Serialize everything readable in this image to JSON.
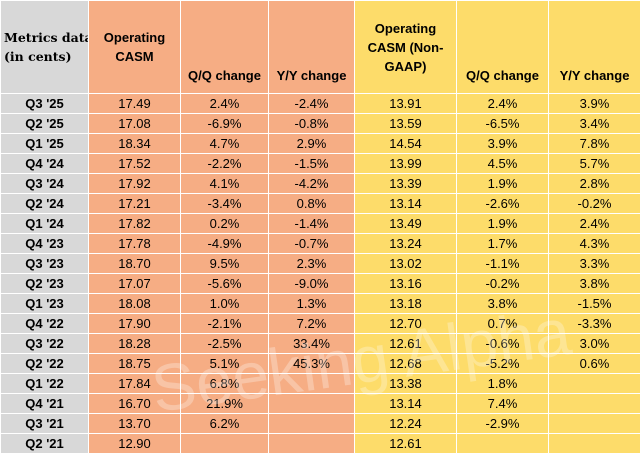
{
  "header": {
    "metric_line1": "Metrics data",
    "metric_line2": "(in cents)",
    "op_casm": "Operating CASM",
    "qq1": "Q/Q change",
    "yy1": "Y/Y change",
    "op_casm_nongaap": "Operating CASM (Non-GAAP)",
    "qq2": "Q/Q change",
    "yy2": "Y/Y change"
  },
  "rows": [
    {
      "period": "Q3 '25",
      "casm": "17.49",
      "casm_qq": "2.4%",
      "casm_yy": "-2.4%",
      "ng": "13.91",
      "ng_qq": "2.4%",
      "ng_yy": "3.9%"
    },
    {
      "period": "Q2 '25",
      "casm": "17.08",
      "casm_qq": "-6.9%",
      "casm_yy": "-0.8%",
      "ng": "13.59",
      "ng_qq": "-6.5%",
      "ng_yy": "3.4%"
    },
    {
      "period": "Q1 '25",
      "casm": "18.34",
      "casm_qq": "4.7%",
      "casm_yy": "2.9%",
      "ng": "14.54",
      "ng_qq": "3.9%",
      "ng_yy": "7.8%"
    },
    {
      "period": "Q4 '24",
      "casm": "17.52",
      "casm_qq": "-2.2%",
      "casm_yy": "-1.5%",
      "ng": "13.99",
      "ng_qq": "4.5%",
      "ng_yy": "5.7%"
    },
    {
      "period": "Q3 '24",
      "casm": "17.92",
      "casm_qq": "4.1%",
      "casm_yy": "-4.2%",
      "ng": "13.39",
      "ng_qq": "1.9%",
      "ng_yy": "2.8%"
    },
    {
      "period": "Q2 '24",
      "casm": "17.21",
      "casm_qq": "-3.4%",
      "casm_yy": "0.8%",
      "ng": "13.14",
      "ng_qq": "-2.6%",
      "ng_yy": "-0.2%"
    },
    {
      "period": "Q1 '24",
      "casm": "17.82",
      "casm_qq": "0.2%",
      "casm_yy": "-1.4%",
      "ng": "13.49",
      "ng_qq": "1.9%",
      "ng_yy": "2.4%"
    },
    {
      "period": "Q4 '23",
      "casm": "17.78",
      "casm_qq": "-4.9%",
      "casm_yy": "-0.7%",
      "ng": "13.24",
      "ng_qq": "1.7%",
      "ng_yy": "4.3%"
    },
    {
      "period": "Q3 '23",
      "casm": "18.70",
      "casm_qq": "9.5%",
      "casm_yy": "2.3%",
      "ng": "13.02",
      "ng_qq": "-1.1%",
      "ng_yy": "3.3%"
    },
    {
      "period": "Q2 '23",
      "casm": "17.07",
      "casm_qq": "-5.6%",
      "casm_yy": "-9.0%",
      "ng": "13.16",
      "ng_qq": "-0.2%",
      "ng_yy": "3.8%"
    },
    {
      "period": "Q1 '23",
      "casm": "18.08",
      "casm_qq": "1.0%",
      "casm_yy": "1.3%",
      "ng": "13.18",
      "ng_qq": "3.8%",
      "ng_yy": "-1.5%"
    },
    {
      "period": "Q4 '22",
      "casm": "17.90",
      "casm_qq": "-2.1%",
      "casm_yy": "7.2%",
      "ng": "12.70",
      "ng_qq": "0.7%",
      "ng_yy": "-3.3%"
    },
    {
      "period": "Q3 '22",
      "casm": "18.28",
      "casm_qq": "-2.5%",
      "casm_yy": "33.4%",
      "ng": "12.61",
      "ng_qq": "-0.6%",
      "ng_yy": "3.0%"
    },
    {
      "period": "Q2 '22",
      "casm": "18.75",
      "casm_qq": "5.1%",
      "casm_yy": "45.3%",
      "ng": "12.68",
      "ng_qq": "-5.2%",
      "ng_yy": "0.6%"
    },
    {
      "period": "Q1 '22",
      "casm": "17.84",
      "casm_qq": "6.8%",
      "casm_yy": "",
      "ng": "13.38",
      "ng_qq": "1.8%",
      "ng_yy": ""
    },
    {
      "period": "Q4 '21",
      "casm": "16.70",
      "casm_qq": "21.9%",
      "casm_yy": "",
      "ng": "13.14",
      "ng_qq": "7.4%",
      "ng_yy": ""
    },
    {
      "period": "Q3 '21",
      "casm": "13.70",
      "casm_qq": "6.2%",
      "casm_yy": "",
      "ng": "12.24",
      "ng_qq": "-2.9%",
      "ng_yy": ""
    },
    {
      "period": "Q2 '21",
      "casm": "12.90",
      "casm_qq": "",
      "casm_yy": "",
      "ng": "12.61",
      "ng_qq": "",
      "ng_yy": ""
    }
  ],
  "watermark": "Seeking Alpha",
  "colors": {
    "orange": "#f6ad84",
    "yellow": "#fddc6a",
    "gray": "#d8d8d8"
  }
}
